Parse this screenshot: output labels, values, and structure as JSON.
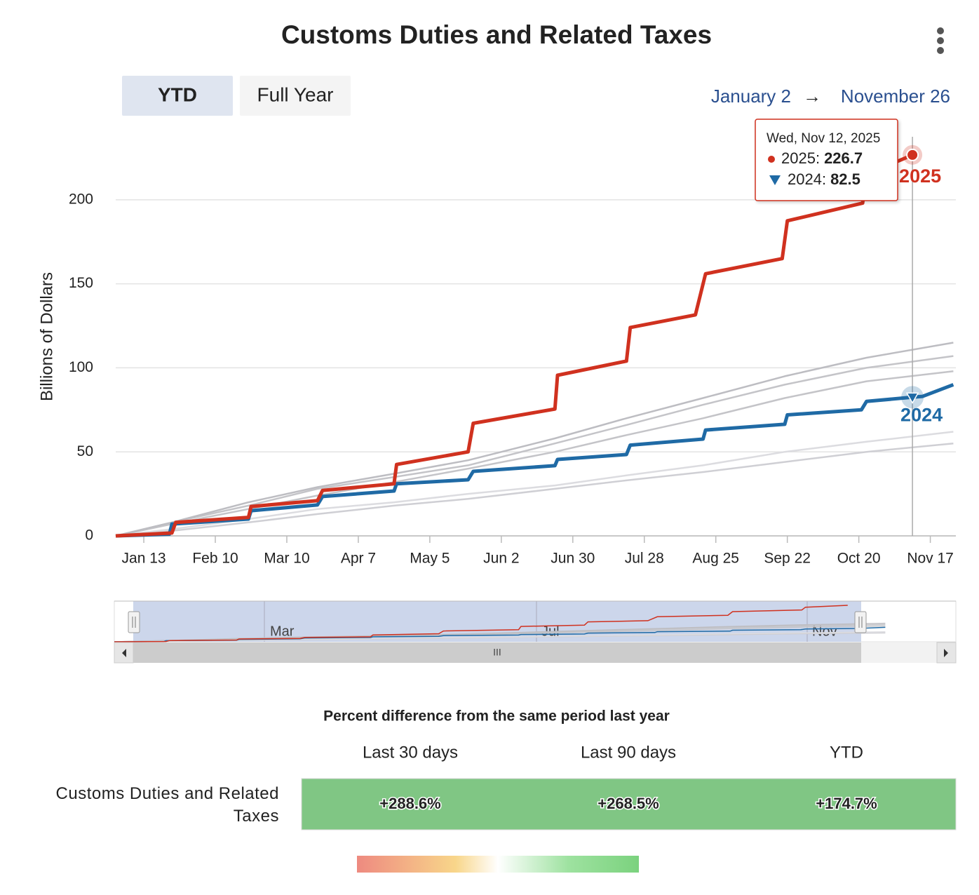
{
  "chart_data": {
    "type": "line",
    "title": "Customs Duties and Related Taxes",
    "y_label": "Billions of Dollars",
    "xlim": [
      2,
      331
    ],
    "ylim": [
      0,
      240
    ],
    "yticks": [
      0,
      50,
      100,
      150,
      200
    ],
    "grid": true,
    "xticks": [
      {
        "value": 13,
        "label": "Jan 13"
      },
      {
        "value": 41,
        "label": "Feb 10"
      },
      {
        "value": 69,
        "label": "Mar 10"
      },
      {
        "value": 97,
        "label": "Apr 7"
      },
      {
        "value": 125,
        "label": "May 5"
      },
      {
        "value": 153,
        "label": "Jun 2"
      },
      {
        "value": 181,
        "label": "Jun 30"
      },
      {
        "value": 209,
        "label": "Jul 28"
      },
      {
        "value": 237,
        "label": "Aug 25"
      },
      {
        "value": 265,
        "label": "Sep 22"
      },
      {
        "value": 293,
        "label": "Oct 20"
      },
      {
        "value": 321,
        "label": "Nov 17"
      }
    ],
    "series": [
      {
        "color": "#cfcfd4",
        "x": [
          2,
          24,
          54,
          81,
          111,
          140,
          174,
          202,
          232,
          264,
          296,
          330
        ],
        "values": [
          0,
          3,
          8,
          13,
          18,
          22,
          28,
          33,
          38,
          44,
          50,
          55
        ]
      },
      {
        "color": "#dcdce0",
        "x": [
          2,
          24,
          54,
          81,
          111,
          140,
          174,
          202,
          232,
          264,
          296,
          330
        ],
        "values": [
          0,
          4,
          10,
          16,
          20,
          25,
          30,
          36,
          42,
          50,
          56,
          62
        ]
      },
      {
        "color": "#c4c4c8",
        "x": [
          2,
          24,
          54,
          81,
          111,
          140,
          174,
          202,
          232,
          264,
          296,
          330
        ],
        "values": [
          0,
          7,
          16,
          24,
          32,
          40,
          50,
          60,
          70,
          82,
          92,
          98
        ]
      },
      {
        "color": "#c4c4c8",
        "x": [
          2,
          24,
          54,
          81,
          111,
          140,
          174,
          202,
          232,
          264,
          296,
          330
        ],
        "values": [
          0,
          8,
          18,
          28,
          35,
          42,
          55,
          66,
          78,
          90,
          100,
          107
        ]
      },
      {
        "color": "#bdbdc2",
        "x": [
          2,
          24,
          54,
          81,
          111,
          140,
          174,
          202,
          232,
          264,
          296,
          330
        ],
        "values": [
          0,
          8,
          20,
          29,
          37,
          45,
          58,
          70,
          82,
          95,
          106,
          115
        ]
      },
      {
        "name": "2024",
        "color": "#1f6aa5",
        "x": [
          2,
          23,
          24,
          54,
          55,
          81,
          83,
          111,
          112,
          140,
          142,
          174,
          175,
          202,
          203.5,
          232,
          233,
          264,
          265,
          294,
          296,
          314,
          318,
          330
        ],
        "values": [
          0,
          1,
          7,
          10,
          15,
          18.4,
          23.4,
          26.7,
          31,
          33.4,
          38.4,
          41.8,
          45.5,
          48.4,
          54,
          57.6,
          63,
          66.4,
          72,
          75,
          80,
          82.5,
          83,
          90
        ]
      },
      {
        "name": "2025",
        "color": "#d0311f",
        "x": [
          2,
          24,
          25.5,
          54,
          55,
          81,
          83,
          111,
          112,
          140,
          142,
          174,
          175,
          202,
          203.5,
          229,
          233,
          263,
          265,
          294.5,
          296,
          314
        ],
        "values": [
          0,
          1.7,
          8,
          11,
          17.5,
          21,
          27,
          31,
          42.5,
          50,
          67,
          75.5,
          95.6,
          104,
          124,
          131.5,
          156,
          165,
          187.5,
          198,
          215,
          226.7
        ]
      }
    ],
    "tooltip": {
      "date": "Wed, Nov 12, 2025",
      "items": [
        {
          "label": "2025:",
          "value": 226.7
        },
        {
          "label": "2024:",
          "value": 82.5
        }
      ]
    }
  },
  "controls": {
    "buttons": [
      "YTD",
      "Full Year"
    ],
    "range_from": "January 2",
    "arrow": "→",
    "range_to": "November 26"
  },
  "navigator": {
    "labels": [
      "Mar",
      "Jul",
      "Nov"
    ],
    "handle": "III"
  },
  "table": {
    "title": "Percent difference from the same period last year",
    "columns": [
      "Last 30 days",
      "Last 90 days",
      "YTD"
    ],
    "row_label": "Customs Duties and Related Taxes",
    "cells": [
      "+288.6%",
      "+268.5%",
      "+174.7%"
    ]
  }
}
